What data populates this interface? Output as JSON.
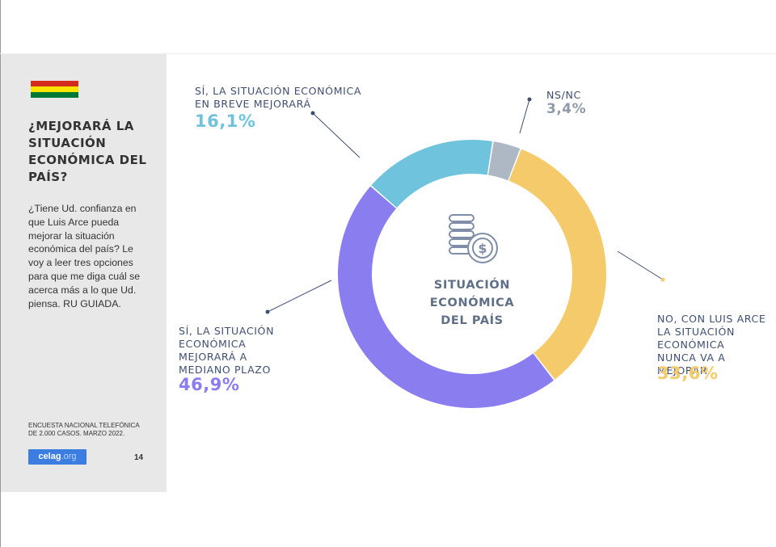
{
  "sidebar": {
    "title": "¿MEJORARÁ LA SITUACIÓN ECONÓMICA DEL PAÍS?",
    "question": "¿Tiene Ud. confianza en que Luis Arce pueda mejorar la situación económica del país? Le voy a leer tres opciones para que me diga cuál se acerca más a lo que Ud. piensa. RU GUIADA.",
    "source": "ENCUESTA NACIONAL TELEFÓNICA DE 2.000 CASOS. MARZO 2022.",
    "logo_main": "celag",
    "logo_suffix": ".org",
    "page_number": "14",
    "flag_colors": [
      "#d52b1e",
      "#f9e300",
      "#007934"
    ]
  },
  "chart_data": {
    "type": "pie",
    "donut": true,
    "center_label": "SITUACIÓN ECONÓMICA DEL PAÍS",
    "center_icon": "coins-dollar-icon",
    "slices": [
      {
        "label": "NS/NC",
        "value": 3.4,
        "value_label": "3,4%",
        "color": "#aeb7c4"
      },
      {
        "label": "NO, CON LUIS ARCE LA SITUACIÓN ECONÓMICA NUNCA VA A MEJORAR",
        "value": 33.6,
        "value_label": "33,6%",
        "color": "#f5ca6a"
      },
      {
        "label": "SÍ, LA SITUACIÓN ECONÓMICA MEJORARÁ A MEDIANO PLAZO",
        "value": 46.9,
        "value_label": "46,9%",
        "color": "#8a7df0"
      },
      {
        "label": "SÍ, LA SITUACIÓN ECONÓMICA EN BREVE MEJORARÁ",
        "value": 16.1,
        "value_label": "16,1%",
        "color": "#6fc3dc"
      }
    ]
  }
}
